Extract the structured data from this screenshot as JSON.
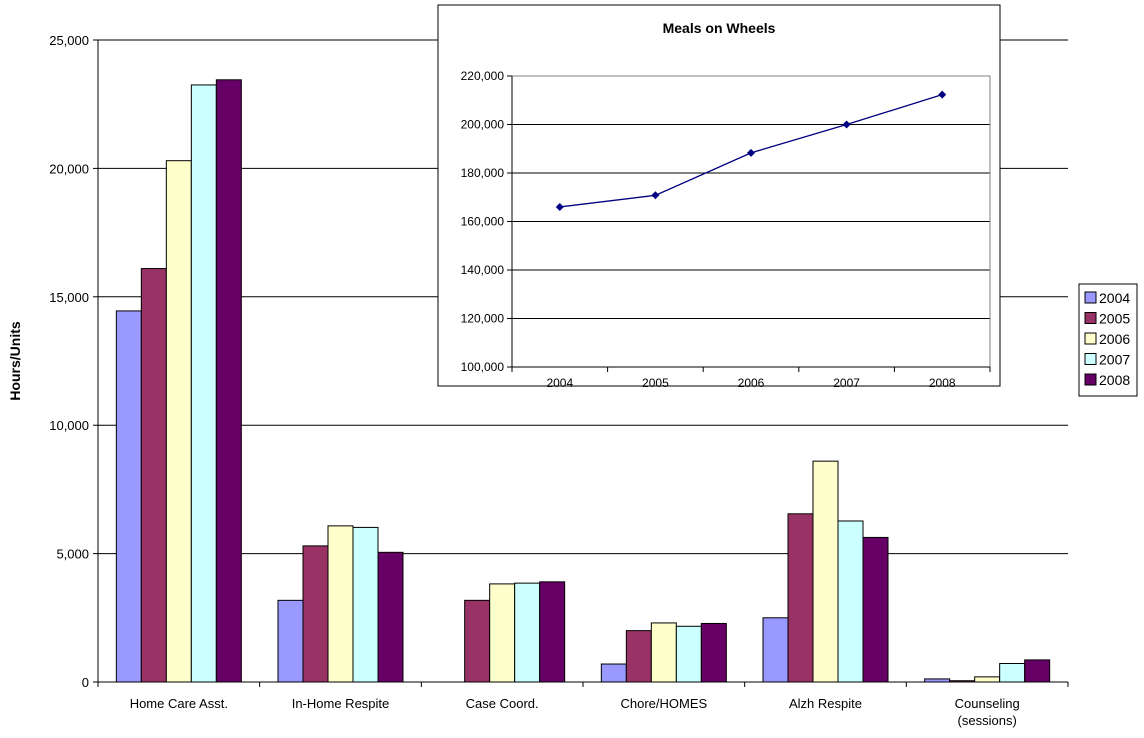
{
  "chart_data": [
    {
      "type": "bar",
      "title": "",
      "xlabel": "",
      "ylabel": "Hours/Units",
      "ylim": [
        0,
        25000
      ],
      "yticks": [
        "0",
        "5,000",
        "10,000",
        "15,000",
        "20,000",
        "25,000"
      ],
      "ytick_values": [
        0,
        5000,
        10000,
        15000,
        20000,
        25000
      ],
      "categories": [
        "Home Care Asst.",
        "In-Home Respite",
        "Case Coord.",
        "Chore/HOMES",
        "Alzh Respite",
        "Counseling (sessions)"
      ],
      "category_lines": [
        [
          "Home Care Asst."
        ],
        [
          "In-Home Respite"
        ],
        [
          "Case Coord."
        ],
        [
          "Chore/HOMES"
        ],
        [
          "Alzh Respite"
        ],
        [
          "Counseling",
          "(sessions)"
        ]
      ],
      "grid": true,
      "legend_position": "right",
      "series": [
        {
          "name": "2004",
          "color": "#9999ff",
          "values": [
            14450,
            3180,
            0,
            700,
            2500,
            120
          ]
        },
        {
          "name": "2005",
          "color": "#993366",
          "values": [
            16100,
            5300,
            3180,
            2000,
            6550,
            50
          ]
        },
        {
          "name": "2006",
          "color": "#ffffcc",
          "values": [
            20300,
            6080,
            3820,
            2300,
            8600,
            200
          ]
        },
        {
          "name": "2007",
          "color": "#ccffff",
          "values": [
            23250,
            6020,
            3850,
            2170,
            6270,
            720
          ]
        },
        {
          "name": "2008",
          "color": "#660066",
          "values": [
            23450,
            5050,
            3900,
            2280,
            5630,
            860
          ]
        }
      ]
    },
    {
      "type": "line",
      "title": "Meals on Wheels",
      "xlabel": "",
      "ylabel": "",
      "x": [
        "2004",
        "2005",
        "2006",
        "2007",
        "2008"
      ],
      "ylim": [
        100000,
        220000
      ],
      "yticks": [
        "100,000",
        "120,000",
        "140,000",
        "160,000",
        "180,000",
        "200,000",
        "220,000"
      ],
      "ytick_values": [
        100000,
        120000,
        140000,
        160000,
        180000,
        200000,
        220000
      ],
      "grid": true,
      "series": [
        {
          "color": "#000080",
          "values": [
            166000,
            170800,
            188300,
            200000,
            212300
          ]
        }
      ]
    }
  ]
}
